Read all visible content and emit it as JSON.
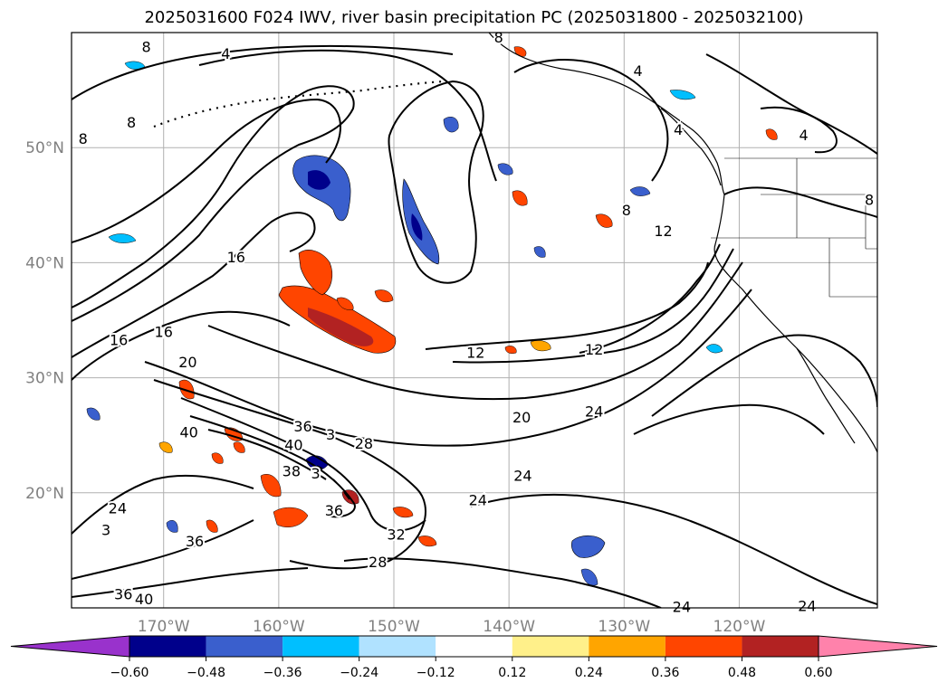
{
  "title": "2025031600 F024 IWV, river basin precipitation PC (2025031800 - 2025032100)",
  "map": {
    "lon_range": [
      -178,
      -108
    ],
    "lat_range": [
      10,
      60
    ],
    "lon_ticks": [
      {
        "lon": -170,
        "label": "170°W"
      },
      {
        "lon": -160,
        "label": "160°W"
      },
      {
        "lon": -150,
        "label": "150°W"
      },
      {
        "lon": -140,
        "label": "140°W"
      },
      {
        "lon": -130,
        "label": "130°W"
      },
      {
        "lon": -120,
        "label": "120°W"
      }
    ],
    "lat_ticks": [
      {
        "lat": 20,
        "label": "20°N"
      },
      {
        "lat": 30,
        "label": "30°N"
      },
      {
        "lat": 40,
        "label": "40°N"
      },
      {
        "lat": 50,
        "label": "50°N"
      }
    ],
    "grid": true,
    "contour_labels": [
      {
        "text": "8",
        "lon": -171.5,
        "lat": 58.8
      },
      {
        "text": "4",
        "lon": -164.6,
        "lat": 58.2
      },
      {
        "text": "8",
        "lon": -177.0,
        "lat": 50.8
      },
      {
        "text": "8",
        "lon": -172.8,
        "lat": 52.2
      },
      {
        "text": "8",
        "lon": -140.9,
        "lat": 59.6
      },
      {
        "text": "4",
        "lon": -128.8,
        "lat": 56.7
      },
      {
        "text": "4",
        "lon": -125.3,
        "lat": 51.6
      },
      {
        "text": "4",
        "lon": -114.4,
        "lat": 51.1
      },
      {
        "text": "8",
        "lon": -108.7,
        "lat": 45.5
      },
      {
        "text": "8",
        "lon": -129.8,
        "lat": 44.6
      },
      {
        "text": "12",
        "lon": -126.6,
        "lat": 42.8
      },
      {
        "text": "16",
        "lon": -163.7,
        "lat": 40.5
      },
      {
        "text": "16",
        "lon": -173.9,
        "lat": 33.3
      },
      {
        "text": "16",
        "lon": -170.0,
        "lat": 34.0
      },
      {
        "text": "12",
        "lon": -142.9,
        "lat": 32.2
      },
      {
        "text": "12",
        "lon": -132.6,
        "lat": 32.5
      },
      {
        "text": "20",
        "lon": -167.9,
        "lat": 31.4
      },
      {
        "text": "20",
        "lon": -138.9,
        "lat": 26.6
      },
      {
        "text": "24",
        "lon": -132.6,
        "lat": 27.1
      },
      {
        "text": "40",
        "lon": -167.8,
        "lat": 25.3
      },
      {
        "text": "36",
        "lon": -157.9,
        "lat": 25.8
      },
      {
        "text": "3",
        "lon": -155.5,
        "lat": 25.1
      },
      {
        "text": "28",
        "lon": -152.6,
        "lat": 24.3
      },
      {
        "text": "40",
        "lon": -158.7,
        "lat": 24.2
      },
      {
        "text": "38",
        "lon": -158.9,
        "lat": 21.9
      },
      {
        "text": "3",
        "lon": -156.8,
        "lat": 21.7
      },
      {
        "text": "24",
        "lon": -138.8,
        "lat": 21.5
      },
      {
        "text": "24",
        "lon": -142.7,
        "lat": 19.4
      },
      {
        "text": "24",
        "lon": -174.0,
        "lat": 18.7
      },
      {
        "text": "36",
        "lon": -155.2,
        "lat": 18.5
      },
      {
        "text": "3",
        "lon": -175.0,
        "lat": 16.8
      },
      {
        "text": "36",
        "lon": -167.3,
        "lat": 15.8
      },
      {
        "text": "32",
        "lon": -149.8,
        "lat": 16.4
      },
      {
        "text": "28",
        "lon": -151.4,
        "lat": 14.0
      },
      {
        "text": "36",
        "lon": -173.5,
        "lat": 11.2
      },
      {
        "text": "40",
        "lon": -171.7,
        "lat": 10.8
      },
      {
        "text": "24",
        "lon": -125.0,
        "lat": 10.1
      },
      {
        "text": "24",
        "lon": -114.1,
        "lat": 10.2
      }
    ]
  },
  "colorbar": {
    "ticks": [
      "−0.60",
      "−0.48",
      "−0.36",
      "−0.24",
      "−0.12",
      "0.12",
      "0.24",
      "0.36",
      "0.48",
      "0.60"
    ],
    "colors": [
      "#9932cc",
      "#00008b",
      "#3a5fcd",
      "#00bfff",
      "#b0e2ff",
      "#ffffff",
      "#fff08a",
      "#ffa500",
      "#ff4500",
      "#b22222",
      "#ff82ab"
    ]
  },
  "colors": {
    "neg_strong": "#00008b",
    "neg_mid": "#3a5fcd",
    "neg_light": "#00bfff",
    "neg_faint": "#b0e2ff",
    "pos_faint": "#fff08a",
    "pos_light": "#ffa500",
    "pos_mid": "#ff4500",
    "pos_strong": "#b22222"
  }
}
